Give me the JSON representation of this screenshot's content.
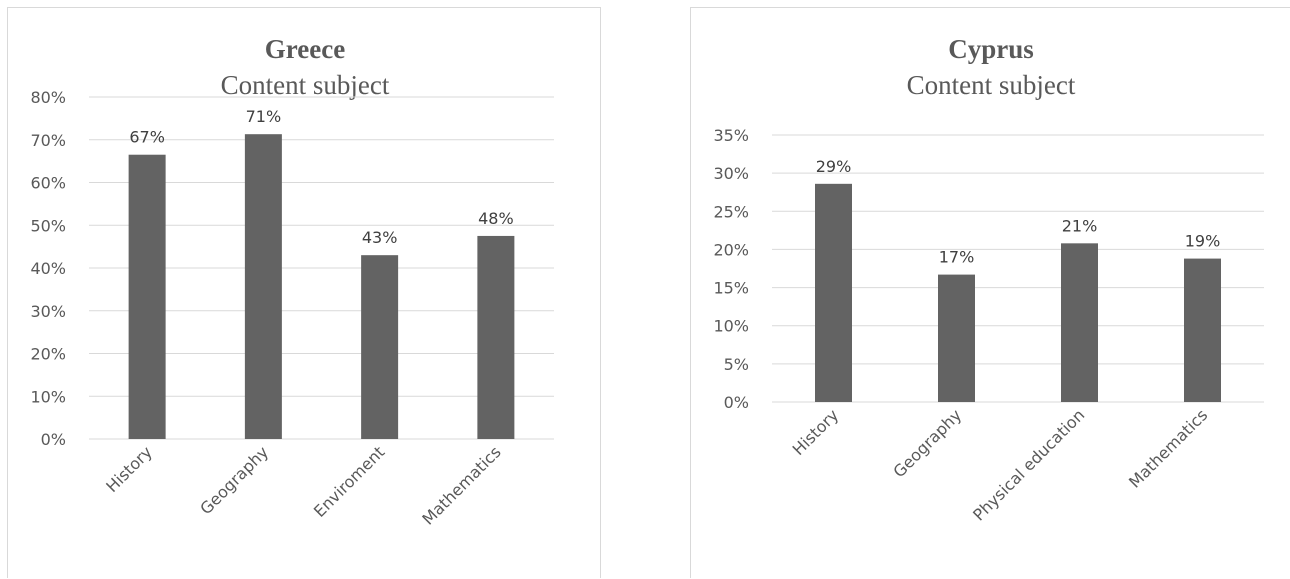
{
  "chart_data": [
    {
      "type": "bar",
      "title": "Greece",
      "subtitle": "Content subject",
      "categories": [
        "History",
        "Geography",
        "Enviroment",
        "Mathematics"
      ],
      "values": [
        0.665,
        0.713,
        0.43,
        0.475
      ],
      "data_labels": [
        "67%",
        "71%",
        "43%",
        "48%"
      ],
      "ylim": [
        0,
        0.8
      ],
      "yticks": [
        "0%",
        "10%",
        "20%",
        "30%",
        "40%",
        "50%",
        "60%",
        "70%",
        "80%"
      ],
      "grid": true,
      "bar_color": "#636363"
    },
    {
      "type": "bar",
      "title": "Cyprus",
      "subtitle": "Content subject",
      "categories": [
        "History",
        "Geography",
        "Physical education",
        "Mathematics"
      ],
      "values": [
        0.286,
        0.167,
        0.208,
        0.188
      ],
      "data_labels": [
        "29%",
        "17%",
        "21%",
        "19%"
      ],
      "ylim": [
        0,
        0.35
      ],
      "yticks": [
        "0%",
        "5%",
        "10%",
        "15%",
        "20%",
        "25%",
        "30%",
        "35%"
      ],
      "grid": true,
      "bar_color": "#636363"
    }
  ]
}
